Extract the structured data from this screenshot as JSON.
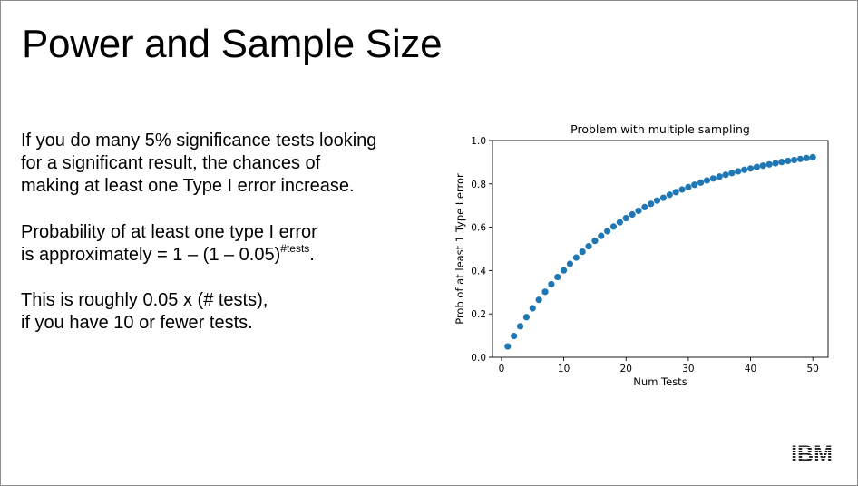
{
  "slide": {
    "title": "Power and Sample Size",
    "paragraph1": [
      "If you do many 5% significance tests looking",
      "for a significant result, the chances of",
      "making at least one Type I error increase."
    ],
    "paragraph2": {
      "line1": "Probability of at least one type I error",
      "line2_prefix": "is approximately = 1 – (1 – 0.05)",
      "line2_exponent": "#tests",
      "line2_suffix": "."
    },
    "paragraph3": [
      "This is roughly 0.05 x (# tests),",
      "if you have 10 or fewer tests."
    ],
    "logo": "IBM"
  },
  "chart_data": {
    "type": "scatter",
    "title": "Problem with multiple sampling",
    "xlabel": "Num Tests",
    "ylabel": "Prob of at least 1 Type I error",
    "xlim": [
      -1.45,
      52.45
    ],
    "ylim": [
      0.0,
      1.0
    ],
    "xticks": [
      0,
      10,
      20,
      30,
      40,
      50
    ],
    "xtick_labels": [
      "0",
      "10",
      "20",
      "30",
      "40",
      "50"
    ],
    "yticks": [
      0.0,
      0.2,
      0.4,
      0.6,
      0.8,
      1.0
    ],
    "ytick_labels": [
      "0.0",
      "0.2",
      "0.4",
      "0.6",
      "0.8",
      "1.0"
    ],
    "grid": false,
    "marker_color": "#1f77b4",
    "x": [
      1,
      2,
      3,
      4,
      5,
      6,
      7,
      8,
      9,
      10,
      11,
      12,
      13,
      14,
      15,
      16,
      17,
      18,
      19,
      20,
      21,
      22,
      23,
      24,
      25,
      26,
      27,
      28,
      29,
      30,
      31,
      32,
      33,
      34,
      35,
      36,
      37,
      38,
      39,
      40,
      41,
      42,
      43,
      44,
      45,
      46,
      47,
      48,
      49,
      50
    ],
    "y": [
      0.05,
      0.098,
      0.143,
      0.185,
      0.226,
      0.265,
      0.302,
      0.337,
      0.37,
      0.401,
      0.431,
      0.46,
      0.487,
      0.512,
      0.537,
      0.56,
      0.582,
      0.603,
      0.623,
      0.642,
      0.659,
      0.676,
      0.693,
      0.708,
      0.723,
      0.736,
      0.75,
      0.762,
      0.774,
      0.785,
      0.796,
      0.806,
      0.816,
      0.825,
      0.834,
      0.842,
      0.85,
      0.858,
      0.865,
      0.871,
      0.878,
      0.884,
      0.89,
      0.895,
      0.901,
      0.906,
      0.91,
      0.915,
      0.919,
      0.923
    ]
  }
}
